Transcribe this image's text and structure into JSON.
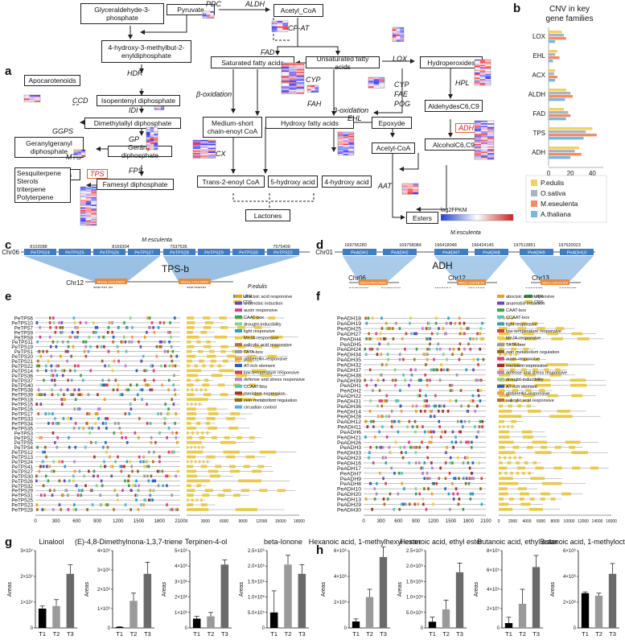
{
  "panel_labels": [
    "a",
    "b",
    "c",
    "d",
    "e",
    "f",
    "g",
    "h"
  ],
  "pathway": {
    "boxes": {
      "g3p": "Glyceraldehyde-3-phosphate",
      "pyruvate": "Pyruvate",
      "acetylcoa_top": "Acetyl_CoA",
      "hmbpp": "4-hydroxy-3-methylbut-2-enyldiphosphate",
      "sat_fa": "Saturated fatty acids",
      "unsat_fa": "Unsaturated fatty acids",
      "hydroperox": "Hydroperoxides",
      "apocarot": "Apocarotenoids",
      "ipp": "Isopentenyl diphosphate",
      "aldehydes": "AldehydesC6,C9",
      "dmapp": "Dimethylallyl diphosphate",
      "ggpp": "Geranylgeranyl diphosphate",
      "medshort": "Medium-short chain-enoyl CoA",
      "hydroxyfa": "Hydroxy fatty acids",
      "epoxyde": "Epoxyde",
      "monoterp": "Monoterpenes",
      "gpp": "Geranyl diphosphate",
      "alcohol": "AlcoholC6,C9",
      "acetylcoa": "Acetyl-CoA",
      "sesqui": "Sesquiterpene Sterols triterpene Polyterpene",
      "fpp": "Famesyl diphosphate",
      "trans2": "Trans-2-enoyl CoA",
      "hydroxy5": "5-hydroxy acid",
      "hydroxy4": "4-hydroxy acid",
      "esters": "Esters",
      "lactones": "Lactones"
    },
    "enzymes": {
      "pdc": "PDC",
      "aldh": "ALDH",
      "acpat": "ACP-AT",
      "hdr": "HDR",
      "fad": "FAD",
      "lox": "LOX",
      "ccd": "CCD",
      "idi": "IDI",
      "cyp1": "CYP",
      "hpl": "HPL",
      "ggps": "GGPS",
      "boxid": "β-oxidation",
      "fah": "FAH",
      "cyp2": "CYP",
      "fae": "FAE",
      "pog": "POG",
      "gp": "GP",
      "boxid2": "β-oxidation",
      "ehl": "EHL",
      "adh": "ADH",
      "mts": "MTS",
      "fps": "FPS",
      "acx": "ACX",
      "tps": "TPS",
      "aat": "AAT"
    },
    "legend": {
      "title": "log2FPKM",
      "ticks": [
        "1.20",
        "1.00",
        "0.80",
        "0.60",
        "0.40",
        "0.20",
        "0.00",
        "0.20",
        "0.40",
        "0.60",
        "0.80",
        "1.00",
        "1.20"
      ],
      "species": "M.esculenta"
    }
  },
  "cnv_chart": {
    "chart_data": {
      "type": "bar",
      "title": "CNV in key gene families",
      "categories": [
        "LOX",
        "EHL",
        "ACX",
        "ALDH",
        "FAD",
        "TPS",
        "ADH"
      ],
      "series": [
        {
          "name": "P.edulis",
          "values": [
            12,
            8,
            6,
            16,
            14,
            40,
            28
          ]
        },
        {
          "name": "O.sativa",
          "values": [
            14,
            6,
            5,
            20,
            18,
            34,
            24
          ]
        },
        {
          "name": "M.eseulenta",
          "values": [
            16,
            10,
            8,
            22,
            20,
            44,
            30
          ]
        },
        {
          "name": "A.thaliana",
          "values": [
            6,
            4,
            6,
            15,
            16,
            32,
            20
          ]
        }
      ],
      "xticks": [
        "0",
        "20",
        "40"
      ],
      "xlim": [
        0,
        50
      ],
      "colors": [
        "#f3cf66",
        "#a9b3c2",
        "#f08d66",
        "#7ab7e0"
      ]
    }
  },
  "synteny_c": {
    "top_chr": "Chr06",
    "top_species": "M.esculenta",
    "top_positions": [
      "8102088",
      "8169304",
      "7537535",
      "7575409"
    ],
    "top_genes": [
      "PeTPS24",
      "PeTPS25",
      "PeTPS26",
      "PeTPS27",
      "PeTPS28",
      "PeTPS29",
      "PeTPS30",
      "PeTPS22"
    ],
    "label": "TPS-b",
    "bot_chr": "Chr12",
    "bot_species": "P.edulis",
    "bot_genes": [
      "Manes.12G109600",
      "Manes.12G109800"
    ],
    "bot_positions": [
      "30523140",
      "30679600"
    ]
  },
  "synteny_d": {
    "top_chr": "Chr01",
    "top_positions": [
      "169756280",
      "169758084",
      "196418048",
      "196424145",
      "197513851",
      "197520023"
    ],
    "top_genes": [
      "PeADH1",
      "PeADH2",
      "PeADH7",
      "PeADH8",
      "PeADH9",
      "PeADH10"
    ],
    "label": "ADH",
    "bot_chrs": [
      "Chr06",
      "Chr12",
      "Chr13"
    ],
    "bot_genes": [
      "Manes.06G125200",
      "Manes.12G046700",
      "Manes.13G021900"
    ],
    "bot_positions": [
      "24703062",
      "24705863",
      "4362624",
      "4364908",
      "5601378",
      "5602673"
    ],
    "bot_species": "P.edulis"
  },
  "motif_e": {
    "genes": [
      "PeTPS6",
      "PeTPS10",
      "PeTPS7",
      "PeTPS9",
      "PeTPS8",
      "PeTPS11",
      "PeTPS19",
      "PeTPS1",
      "PeTPS20",
      "PeTPS21",
      "PeTPS22",
      "PeTPS14",
      "PeTPS36",
      "PeTPS37",
      "PeTPS40",
      "PeTPS38",
      "PeTPS39",
      "PeTPS18",
      "PeTPS15",
      "PeTPS16",
      "PeTPS17",
      "PeTPS33",
      "PeTPS34",
      "PeTPS35",
      "PeTPS3",
      "PeTPS2",
      "PeTPS5",
      "PeTPS4",
      "PeTPS12",
      "PeTPS13",
      "PeTPS24",
      "PeTPS41",
      "PeTPS27",
      "PeTPS30",
      "PeTPS26",
      "PeTPS32",
      "PeTPS29",
      "PeTPS31",
      "PeTPS25",
      "PeTPS23",
      "PeTPS28"
    ],
    "xticks": [
      "0",
      "300",
      "600",
      "900",
      "1200",
      "1500",
      "1800",
      "2100"
    ],
    "xticks2": [
      "0",
      "3000",
      "6000",
      "9000",
      "12000",
      "15000",
      "18000"
    ],
    "utr": "UTR",
    "cds": "CDS",
    "legend": [
      "abscisic acid responsive",
      "anaerobic induction",
      "auxin responsive",
      "CAAT-box",
      "drought-inducibility",
      "light responsive",
      "MeJA-responsive",
      "salicylic acid responsive",
      "TATA-box",
      "gibberellin-responsive",
      "AT-rich element",
      "low-temperature responsive",
      "defense and stress responsive",
      "CCAAT-box",
      "meristem expression",
      "zein metabolism regulation",
      "circadian control"
    ],
    "legend_colors": [
      "#e6a020",
      "#6a4ab0",
      "#e03c8a",
      "#3fa050",
      "#8bd18b",
      "#30a0c8",
      "#e8d040",
      "#b07030",
      "#9a9a9a",
      "#f59a50",
      "#2b60c0",
      "#d44040",
      "#c080d0",
      "#60c0c0",
      "#a03030",
      "#8a6a2a",
      "#50b0e0"
    ]
  },
  "motif_f": {
    "genes": [
      "PeADH18",
      "PeADH19",
      "PeADH25",
      "PeADH27",
      "PeADH4",
      "PeADH5",
      "PeADH24",
      "PeADH34",
      "PeADH35",
      "PeADH32",
      "PeADH37",
      "PeADH38",
      "PeADH39",
      "PeADH1",
      "PeADH2",
      "PeADH22",
      "PeADH31",
      "PeADH36",
      "PeADH14",
      "PeADH28",
      "PeADH12",
      "PeADH11",
      "PeADH6",
      "PeADH21",
      "PeADH26",
      "PeADH3",
      "PeADH33",
      "PeADH23",
      "PeADH16",
      "PeADH17",
      "PeADH7",
      "PeADH9",
      "PeADH8",
      "PeADH10",
      "PeADH20",
      "PeADH13",
      "PeADH29",
      "PeADH30"
    ],
    "xticks": [
      "0",
      "300",
      "600",
      "900",
      "1200",
      "1500",
      "1800",
      "2100"
    ],
    "xticks2": [
      "0",
      "2000",
      "4000",
      "6000",
      "8000",
      "10000",
      "12000",
      "14000",
      "16000"
    ],
    "utr": "UTR",
    "cds": "CDS",
    "legend": [
      "abscisic acid responsive",
      "anaerobic induction",
      "CAAT-box",
      "CCAAT-box",
      "light responsive",
      "low-temperature responsive",
      "MeJA-responsive",
      "TATA-box",
      "zein metabolism regulation",
      "auxin-responsive",
      "meristem expression",
      "defense and stress responsive",
      "drought-inducibility",
      "AT-rich element",
      "gibberellin-responsive",
      "salicylic acid responsive"
    ],
    "legend_colors": [
      "#e6a020",
      "#6a4ab0",
      "#3fa050",
      "#60c0c0",
      "#30a0c8",
      "#d44040",
      "#e8d040",
      "#9a9a9a",
      "#8a6a2a",
      "#e03c8a",
      "#a03030",
      "#c080d0",
      "#8bd18b",
      "#2b60c0",
      "#f59a50",
      "#b07030"
    ]
  },
  "bar_g": [
    {
      "title": "Linalool",
      "yticks": [
        "0",
        "1×10⁷",
        "2×10⁷",
        "3×10⁷"
      ],
      "ymax": 3,
      "values": [
        0.75,
        0.85,
        2.1
      ],
      "err": [
        0.1,
        0.25,
        0.35
      ],
      "cats": [
        "T1",
        "T2",
        "T3"
      ]
    },
    {
      "title": "(E)-4,8-Dimethylnona-1,3,7-triene",
      "yticks": [
        "0",
        "1×10⁶",
        "2×10⁶",
        "3×10⁶",
        "4×10⁶"
      ],
      "ymax": 4,
      "values": [
        0.05,
        1.4,
        2.8
      ],
      "err": [
        0.02,
        0.4,
        0.6
      ],
      "cats": [
        "T1",
        "T2",
        "T3"
      ]
    },
    {
      "title": "Terpinen-4-ol",
      "yticks": [
        "0",
        "1×10⁶",
        "2×10⁶",
        "3×10⁶",
        "4×10⁶",
        "5×10⁶"
      ],
      "ymax": 5,
      "values": [
        0.6,
        0.75,
        4.1
      ],
      "err": [
        0.15,
        0.25,
        0.3
      ],
      "cats": [
        "T1",
        "T2",
        "T3"
      ]
    },
    {
      "title": "beta-Ionone",
      "yticks": [
        "0",
        "5.0×10⁵",
        "1.0×10⁶",
        "1.5×10⁶",
        "2.0×10⁶",
        "2.5×10⁶"
      ],
      "ymax": 2.5,
      "values": [
        0.5,
        2.05,
        1.75
      ],
      "err": [
        0.7,
        0.3,
        0.3
      ],
      "cats": [
        "T1",
        "T2",
        "T3"
      ]
    }
  ],
  "bar_h": [
    {
      "title": "Hexanoic acid, 1-methylhexyl ester",
      "yticks": [
        "0",
        "2×10⁶",
        "4×10⁶",
        "6×10⁶"
      ],
      "ymax": 6,
      "values": [
        0.5,
        2.4,
        5.5
      ],
      "err": [
        0.2,
        0.6,
        0.8
      ],
      "cats": [
        "T1",
        "T2",
        "T3"
      ]
    },
    {
      "title": "Hexanoic acid, ethyl ester",
      "yticks": [
        "0",
        "5.0×10⁵",
        "1.0×10⁶",
        "1.5×10⁶",
        "2.0×10⁶",
        "2.5×10⁶"
      ],
      "ymax": 2.5,
      "values": [
        0.2,
        0.6,
        1.8
      ],
      "err": [
        0.15,
        0.3,
        0.3
      ],
      "cats": [
        "T1",
        "T2",
        "T3"
      ]
    },
    {
      "title": "Butanoic acid, ethyl ester",
      "yticks": [
        "0",
        "2×10⁵",
        "4×10⁵",
        "6×10⁵",
        "8×10⁵"
      ],
      "ymax": 8,
      "values": [
        0.5,
        2.5,
        6.3
      ],
      "err": [
        0.6,
        1.5,
        1.2
      ],
      "cats": [
        "T1",
        "T2",
        "T3"
      ]
    },
    {
      "title": "Butanoic acid, 1-methyloctyl ester",
      "yticks": [
        "0",
        "2×10⁶",
        "4×10⁶",
        "6×10⁶"
      ],
      "ymax": 6,
      "values": [
        2.7,
        2.5,
        4.2
      ],
      "err": [
        0.1,
        0.2,
        0.8
      ],
      "cats": [
        "T1",
        "T2",
        "T3"
      ]
    }
  ]
}
